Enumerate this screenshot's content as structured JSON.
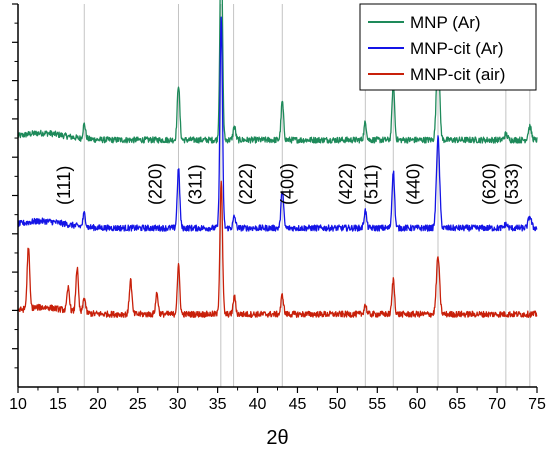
{
  "chart_data": {
    "type": "line",
    "xlabel": "2θ",
    "ylabel": "",
    "xlim": [
      10,
      75
    ],
    "ylim": [
      0,
      10
    ],
    "x_ticks": [
      10,
      15,
      20,
      25,
      30,
      35,
      40,
      45,
      50,
      55,
      60,
      65,
      70,
      75
    ],
    "grid": false,
    "legend_position": "top-right",
    "reference_lines": [
      18.3,
      30.1,
      35.4,
      37.0,
      43.1,
      53.5,
      57.0,
      62.6,
      71.1,
      74.1
    ],
    "peak_labels": [
      {
        "text": "(111)",
        "x": 16.5
      },
      {
        "text": "(220)",
        "x": 28.0
      },
      {
        "text": "(311)",
        "x": 33.0
      },
      {
        "text": "(222)",
        "x": 39.3
      },
      {
        "text": "(400)",
        "x": 44.5
      },
      {
        "text": "(422)",
        "x": 51.8
      },
      {
        "text": "(511)",
        "x": 55.0
      },
      {
        "text": "(440)",
        "x": 60.3
      },
      {
        "text": "(620)",
        "x": 69.8
      },
      {
        "text": "(533)",
        "x": 72.6
      }
    ],
    "series": [
      {
        "name": "MNP (Ar)",
        "color": "#1e8a5a",
        "baseline": 6.45,
        "peaks": [
          [
            18.3,
            0.38
          ],
          [
            30.1,
            1.45
          ],
          [
            35.45,
            5.5
          ],
          [
            37.1,
            0.35
          ],
          [
            43.1,
            1.0
          ],
          [
            53.5,
            0.45
          ],
          [
            57.0,
            1.5
          ],
          [
            62.6,
            2.35
          ],
          [
            71.1,
            0.15
          ],
          [
            74.1,
            0.35
          ]
        ]
      },
      {
        "name": "MNP-cit (Ar)",
        "color": "#1414e6",
        "baseline": 4.15,
        "peaks": [
          [
            18.3,
            0.35
          ],
          [
            30.1,
            1.55
          ],
          [
            35.45,
            5.5
          ],
          [
            37.1,
            0.3
          ],
          [
            43.1,
            1.0
          ],
          [
            53.5,
            0.45
          ],
          [
            57.0,
            1.5
          ],
          [
            62.6,
            2.35
          ],
          [
            71.1,
            0.1
          ],
          [
            74.1,
            0.3
          ]
        ]
      },
      {
        "name": "MNP-cit (air)",
        "color": "#c8200a",
        "baseline": 1.9,
        "peaks": [
          [
            11.3,
            1.6
          ],
          [
            16.3,
            0.6
          ],
          [
            17.4,
            1.15
          ],
          [
            18.3,
            0.4
          ],
          [
            24.1,
            0.9
          ],
          [
            27.4,
            0.55
          ],
          [
            30.1,
            1.25
          ],
          [
            35.45,
            3.5
          ],
          [
            37.1,
            0.45
          ],
          [
            43.1,
            0.5
          ],
          [
            53.5,
            0.25
          ],
          [
            57.0,
            0.9
          ],
          [
            62.6,
            1.5
          ]
        ]
      }
    ]
  }
}
